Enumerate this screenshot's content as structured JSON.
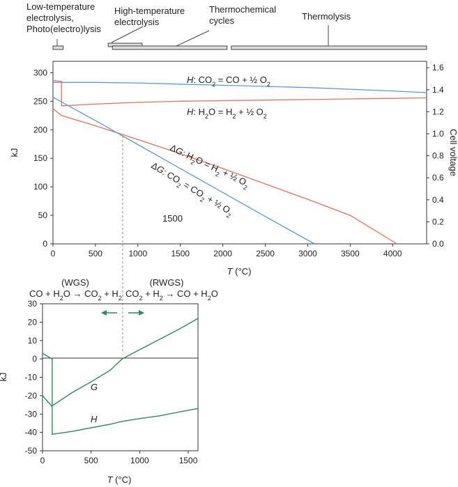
{
  "temperature_ranges": [
    {
      "label": "Low-temperature electrolysis, Photo(electro)lysis",
      "label_lines": [
        "Low-temperature",
        "electrolysis,",
        "Photo(electro)lysis"
      ],
      "T_range": [
        0,
        120
      ]
    },
    {
      "label": "High-temperature electrolysis",
      "label_lines": [
        "High-temperature",
        "electrolysis"
      ],
      "T_range": [
        650,
        1050
      ]
    },
    {
      "label": "Thermochemical cycles",
      "label_lines": [
        "Thermochemical",
        "cycles"
      ],
      "T_range": [
        700,
        2050
      ]
    },
    {
      "label": "Thermolysis",
      "label_lines": [
        "Thermolysis"
      ],
      "T_range": [
        2100,
        4400
      ]
    }
  ],
  "chart_data": [
    {
      "type": "line",
      "xlabel_var": "T",
      "xlabel_unit": " (°C)",
      "ylabel": "kJ",
      "y2label": "Cell voltage",
      "xlim": [
        0,
        4400
      ],
      "ylim": [
        0,
        320
      ],
      "y2lim": [
        0,
        1.658
      ],
      "xticks": [
        0,
        500,
        1000,
        1500,
        2000,
        2500,
        3000,
        3500,
        4000
      ],
      "yticks": [
        0,
        50,
        100,
        150,
        200,
        250,
        300
      ],
      "y2ticks": [
        "0.0",
        "0.2",
        "0.4",
        "0.6",
        "0.8",
        "1.0",
        "1.2",
        "1.4",
        "1.6"
      ],
      "annotation": "1500",
      "series": [
        {
          "name": "H: CO2 = CO + ½ O2",
          "color": "#5b9bd5",
          "x": [
            0,
            500,
            1000,
            1500,
            2000,
            2500,
            3000,
            3500,
            4000,
            4400
          ],
          "y": [
            283,
            283,
            282,
            280,
            278,
            276,
            274,
            271,
            268,
            265
          ]
        },
        {
          "name": "H: H2O = H2 + ½ O2",
          "color": "#e8705e",
          "x": [
            0,
            100,
            100,
            500,
            1000,
            1500,
            2000,
            2500,
            3000,
            3500,
            4000,
            4400
          ],
          "y": [
            286,
            285,
            242,
            245,
            248,
            250,
            251,
            252,
            253,
            254,
            255,
            256
          ]
        },
        {
          "name": "ΔG: H2O = H2 + ½ O2",
          "color": "#e8705e",
          "x": [
            0,
            100,
            500,
            1000,
            1500,
            2000,
            2500,
            3000,
            3500,
            4050
          ],
          "y": [
            237,
            225,
            207,
            183,
            158,
            132,
            105,
            78,
            50,
            0
          ]
        },
        {
          "name": "ΔG: CO2 = CO2 + ½ O2",
          "color": "#5b9bd5",
          "x": [
            0,
            500,
            1000,
            1500,
            2000,
            2500,
            3080
          ],
          "y": [
            257,
            216,
            174,
            132,
            90,
            48,
            0
          ]
        }
      ]
    },
    {
      "type": "line",
      "xlabel_var": "T",
      "xlabel_unit": " (°C)",
      "ylabel": "kJ",
      "xlim": [
        0,
        1600
      ],
      "ylim": [
        -50,
        30
      ],
      "xticks": [
        0,
        500,
        1000,
        1500
      ],
      "yticks": [
        -50,
        -40,
        -30,
        -20,
        -10,
        0,
        10,
        20,
        30
      ],
      "reactions": {
        "left_tag": "(WGS)",
        "left": "CO + H2O → CO2 + H2",
        "right_tag": "(RWGS)",
        "right": "CO2 + H2 → CO + H2O"
      },
      "series": [
        {
          "name": "G",
          "color": "#2e8b57",
          "x": [
            0,
            100,
            100,
            300,
            500,
            700,
            820,
            1000,
            1200,
            1400,
            1600
          ],
          "y": [
            3,
            0,
            -25.5,
            -18.5,
            -12.5,
            -6,
            0,
            5,
            10.5,
            16,
            22
          ]
        },
        {
          "name": "H",
          "color": "#2e8b57",
          "x": [
            0,
            100,
            100,
            300,
            500,
            700,
            820,
            1000,
            1200,
            1400,
            1600
          ],
          "y": [
            -20,
            -26,
            -41,
            -39.5,
            -37.5,
            -35.5,
            -34,
            -32.5,
            -31,
            -29,
            -27
          ]
        }
      ]
    }
  ]
}
